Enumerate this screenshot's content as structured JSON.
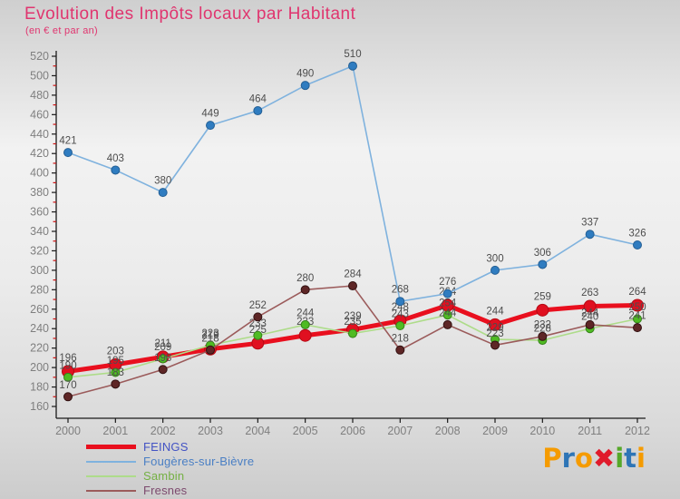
{
  "header": {
    "title": "Evolution des Impôts locaux par Habitant",
    "subtitle": "(en € et par an)",
    "title_color": "#e0356f"
  },
  "chart_data": {
    "type": "line",
    "x": [
      2000,
      2001,
      2002,
      2003,
      2004,
      2005,
      2006,
      2007,
      2008,
      2009,
      2010,
      2011,
      2012
    ],
    "ylim": [
      160,
      520
    ],
    "ytick_step": 20,
    "grid": false,
    "legend_position": "bottom-left",
    "axis_color": "#1a1a1a",
    "minor_tick_color": "#cc1111",
    "tick_label_color": "#7f7f7f",
    "point_label_color": "#4d4d4d",
    "series": [
      {
        "name": "FEINGS",
        "line_color": "#e90f1e",
        "marker_color": "#e01020",
        "marker_stroke": "#b50a14",
        "line_width": 5,
        "marker_radius": 6.5,
        "values": [
          196,
          203,
          211,
          219,
          225,
          233,
          239,
          248,
          264,
          244,
          259,
          263,
          264
        ]
      },
      {
        "name": "Fougères-sur-Bièvre",
        "line_color": "#7fb2de",
        "marker_color": "#2f7cc0",
        "marker_stroke": "#245f94",
        "line_width": 1.6,
        "marker_radius": 4.5,
        "values": [
          421,
          403,
          380,
          449,
          464,
          490,
          510,
          268,
          276,
          300,
          306,
          337,
          326
        ]
      },
      {
        "name": "Sambin",
        "line_color": "#aedc8a",
        "marker_color": "#4fbb23",
        "marker_stroke": "#35831a",
        "line_width": 1.6,
        "marker_radius": 4.5,
        "values": [
          190,
          195,
          209,
          223,
          233,
          244,
          235,
          243,
          254,
          229,
          228,
          240,
          250
        ]
      },
      {
        "name": "Fresnes",
        "line_color": "#9b5b5b",
        "marker_color": "#5e2626",
        "marker_stroke": "#321111",
        "line_width": 1.6,
        "marker_radius": 4.5,
        "values": [
          170,
          183,
          198,
          218,
          252,
          280,
          284,
          218,
          244,
          223,
          232,
          244,
          241
        ]
      }
    ]
  },
  "legend": {
    "items": [
      {
        "label": "FEINGS",
        "swatch_color": "#e90f1e",
        "swatch_height": 5,
        "text_color": "#4353c4"
      },
      {
        "label": "Fougères-sur-Bièvre",
        "swatch_color": "#7fb2de",
        "swatch_height": 2,
        "text_color": "#4a7fc4"
      },
      {
        "label": "Sambin",
        "swatch_color": "#aedc8a",
        "swatch_height": 2,
        "text_color": "#74b043"
      },
      {
        "label": "Fresnes",
        "swatch_color": "#9b5b5b",
        "swatch_height": 2,
        "text_color": "#7d4a6e"
      }
    ]
  },
  "logo": {
    "letters": [
      {
        "ch": "P",
        "color": "#f59b00"
      },
      {
        "ch": "r",
        "color": "#2e75b6"
      },
      {
        "ch": "o",
        "color": "#f59b00"
      },
      {
        "ch": "✖",
        "color": "#e01b2c"
      },
      {
        "ch": "i",
        "color": "#56a829"
      },
      {
        "ch": "t",
        "color": "#2e75b6"
      },
      {
        "ch": "i",
        "color": "#f59b00"
      }
    ]
  }
}
